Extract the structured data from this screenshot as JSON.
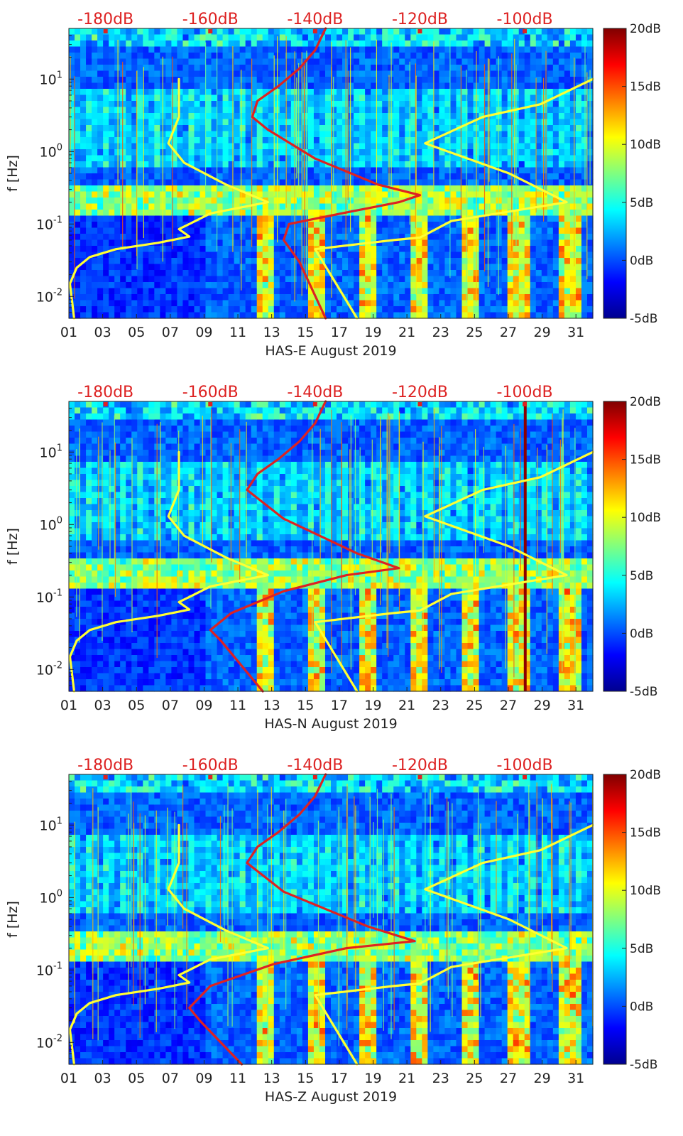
{
  "chart_data": [
    {
      "type": "heatmap",
      "title": "",
      "xlabel": "HAS-E August 2019",
      "ylabel": "f [Hz]",
      "x_ticks": [
        "01",
        "03",
        "05",
        "07",
        "09",
        "11",
        "13",
        "15",
        "17",
        "19",
        "21",
        "23",
        "25",
        "27",
        "29",
        "31"
      ],
      "x_range": [
        1,
        32
      ],
      "y_range": [
        0.005,
        50
      ],
      "y_scale": "log",
      "y_ticks": [
        0.01,
        0.1,
        1,
        10
      ],
      "y_tick_labels": [
        {
          "base": "10",
          "exp": "-2"
        },
        {
          "base": "10",
          "exp": "-1"
        },
        {
          "base": "10",
          "exp": "0"
        },
        {
          "base": "10",
          "exp": "1"
        }
      ],
      "top_axis_labels": [
        "-180dB",
        "-160dB",
        "-140dB",
        "-120dB",
        "-100dB"
      ],
      "top_axis_range": [
        -187,
        -87
      ],
      "colorbar_labels": [
        "20dB",
        "15dB",
        "10dB",
        "5dB",
        "0dB",
        "-5dB"
      ],
      "colorbar_range": [
        -5,
        20
      ],
      "series": [
        {
          "name": "yellow low-noise model",
          "color": "#ffff33",
          "points": [
            [
              -186,
              0.005
            ],
            [
              -186.8,
              0.015
            ],
            [
              -185.5,
              0.025
            ],
            [
              -183,
              0.035
            ],
            [
              -178,
              0.045
            ],
            [
              -170,
              0.055
            ],
            [
              -164,
              0.067
            ],
            [
              -166,
              0.085
            ],
            [
              -164,
              0.1
            ],
            [
              -160,
              0.14
            ],
            [
              -149,
              0.2
            ],
            [
              -157,
              0.35
            ],
            [
              -165,
              0.7
            ],
            [
              -168,
              1.3
            ],
            [
              -166,
              3
            ],
            [
              -166,
              10
            ]
          ]
        },
        {
          "name": "yellow high-noise model",
          "color": "#ffff33",
          "points": [
            [
              -132,
              0.005
            ],
            [
              -140,
              0.045
            ],
            [
              -125,
              0.06
            ],
            [
              -120,
              0.065
            ],
            [
              -114,
              0.11
            ],
            [
              -98,
              0.17
            ],
            [
              -92,
              0.2
            ],
            [
              -103,
              0.5
            ],
            [
              -119,
              1.3
            ],
            [
              -108,
              3
            ],
            [
              -97,
              4.5
            ],
            [
              -87,
              10
            ]
          ]
        },
        {
          "name": "red noise level",
          "color": "#dd2222",
          "points": [
            [
              -138,
              0.005
            ],
            [
              -143,
              0.03
            ],
            [
              -146,
              0.06
            ],
            [
              -145,
              0.1
            ],
            [
              -135,
              0.14
            ],
            [
              -124,
              0.2
            ],
            [
              -120,
              0.25
            ],
            [
              -128,
              0.35
            ],
            [
              -140,
              0.8
            ],
            [
              -149,
              2
            ],
            [
              -152,
              3
            ],
            [
              -151,
              5
            ],
            [
              -147,
              8
            ],
            [
              -143,
              14
            ],
            [
              -140,
              25
            ],
            [
              -138,
              50
            ]
          ]
        }
      ],
      "vertical_line_day": null
    },
    {
      "type": "heatmap",
      "title": "",
      "xlabel": "HAS-N August 2019",
      "ylabel": "f [Hz]",
      "x_ticks": [
        "01",
        "03",
        "05",
        "07",
        "09",
        "11",
        "13",
        "15",
        "17",
        "19",
        "21",
        "23",
        "25",
        "27",
        "29",
        "31"
      ],
      "x_range": [
        1,
        32
      ],
      "y_range": [
        0.005,
        50
      ],
      "y_scale": "log",
      "y_ticks": [
        0.01,
        0.1,
        1,
        10
      ],
      "y_tick_labels": [
        {
          "base": "10",
          "exp": "-2"
        },
        {
          "base": "10",
          "exp": "-1"
        },
        {
          "base": "10",
          "exp": "0"
        },
        {
          "base": "10",
          "exp": "1"
        }
      ],
      "top_axis_labels": [
        "-180dB",
        "-160dB",
        "-140dB",
        "-120dB",
        "-100dB"
      ],
      "top_axis_range": [
        -187,
        -87
      ],
      "colorbar_labels": [
        "20dB",
        "15dB",
        "10dB",
        "5dB",
        "0dB",
        "-5dB"
      ],
      "colorbar_range": [
        -5,
        20
      ],
      "series": [
        {
          "name": "yellow low-noise model",
          "color": "#ffff33",
          "points": [
            [
              -186,
              0.005
            ],
            [
              -186.8,
              0.015
            ],
            [
              -185.5,
              0.025
            ],
            [
              -183,
              0.035
            ],
            [
              -178,
              0.045
            ],
            [
              -170,
              0.055
            ],
            [
              -164,
              0.067
            ],
            [
              -166,
              0.085
            ],
            [
              -164,
              0.1
            ],
            [
              -160,
              0.14
            ],
            [
              -149,
              0.2
            ],
            [
              -157,
              0.35
            ],
            [
              -165,
              0.7
            ],
            [
              -168,
              1.3
            ],
            [
              -166,
              3
            ],
            [
              -166,
              10
            ]
          ]
        },
        {
          "name": "yellow high-noise model",
          "color": "#ffff33",
          "points": [
            [
              -132,
              0.005
            ],
            [
              -140,
              0.045
            ],
            [
              -125,
              0.06
            ],
            [
              -120,
              0.065
            ],
            [
              -114,
              0.11
            ],
            [
              -98,
              0.17
            ],
            [
              -92,
              0.2
            ],
            [
              -103,
              0.5
            ],
            [
              -119,
              1.3
            ],
            [
              -108,
              3
            ],
            [
              -97,
              4.5
            ],
            [
              -87,
              10
            ]
          ]
        },
        {
          "name": "red noise level",
          "color": "#dd2222",
          "points": [
            [
              -150,
              0.005
            ],
            [
              -158,
              0.025
            ],
            [
              -160,
              0.035
            ],
            [
              -156,
              0.06
            ],
            [
              -146,
              0.12
            ],
            [
              -134,
              0.2
            ],
            [
              -124,
              0.25
            ],
            [
              -132,
              0.4
            ],
            [
              -146,
              1.2
            ],
            [
              -153,
              3
            ],
            [
              -151,
              5
            ],
            [
              -147,
              8
            ],
            [
              -143,
              14
            ],
            [
              -140,
              25
            ],
            [
              -138,
              50
            ]
          ]
        }
      ],
      "vertical_line_day": 28
    },
    {
      "type": "heatmap",
      "title": "",
      "xlabel": "HAS-Z August 2019",
      "ylabel": "f [Hz]",
      "x_ticks": [
        "01",
        "03",
        "05",
        "07",
        "09",
        "11",
        "13",
        "15",
        "17",
        "19",
        "21",
        "23",
        "25",
        "27",
        "29",
        "31"
      ],
      "x_range": [
        1,
        32
      ],
      "y_range": [
        0.005,
        50
      ],
      "y_scale": "log",
      "y_ticks": [
        0.01,
        0.1,
        1,
        10
      ],
      "y_tick_labels": [
        {
          "base": "10",
          "exp": "-2"
        },
        {
          "base": "10",
          "exp": "-1"
        },
        {
          "base": "10",
          "exp": "0"
        },
        {
          "base": "10",
          "exp": "1"
        }
      ],
      "top_axis_labels": [
        "-180dB",
        "-160dB",
        "-140dB",
        "-120dB",
        "-100dB"
      ],
      "top_axis_range": [
        -187,
        -87
      ],
      "colorbar_labels": [
        "20dB",
        "15dB",
        "10dB",
        "5dB",
        "0dB",
        "-5dB"
      ],
      "colorbar_range": [
        -5,
        20
      ],
      "series": [
        {
          "name": "yellow low-noise model",
          "color": "#ffff33",
          "points": [
            [
              -186,
              0.005
            ],
            [
              -186.8,
              0.015
            ],
            [
              -185.5,
              0.025
            ],
            [
              -183,
              0.035
            ],
            [
              -178,
              0.045
            ],
            [
              -170,
              0.055
            ],
            [
              -164,
              0.067
            ],
            [
              -166,
              0.085
            ],
            [
              -164,
              0.1
            ],
            [
              -160,
              0.14
            ],
            [
              -149,
              0.2
            ],
            [
              -157,
              0.35
            ],
            [
              -165,
              0.7
            ],
            [
              -168,
              1.3
            ],
            [
              -166,
              3
            ],
            [
              -166,
              10
            ]
          ]
        },
        {
          "name": "yellow high-noise model",
          "color": "#ffff33",
          "points": [
            [
              -132,
              0.005
            ],
            [
              -140,
              0.045
            ],
            [
              -125,
              0.06
            ],
            [
              -120,
              0.065
            ],
            [
              -114,
              0.11
            ],
            [
              -98,
              0.17
            ],
            [
              -92,
              0.2
            ],
            [
              -103,
              0.5
            ],
            [
              -119,
              1.3
            ],
            [
              -108,
              3
            ],
            [
              -97,
              4.5
            ],
            [
              -87,
              10
            ]
          ]
        },
        {
          "name": "red noise level",
          "color": "#dd2222",
          "points": [
            [
              -154,
              0.005
            ],
            [
              -162,
              0.02
            ],
            [
              -164,
              0.03
            ],
            [
              -160,
              0.06
            ],
            [
              -148,
              0.12
            ],
            [
              -134,
              0.2
            ],
            [
              -121,
              0.25
            ],
            [
              -130,
              0.4
            ],
            [
              -146,
              1.2
            ],
            [
              -153,
              3
            ],
            [
              -151,
              5
            ],
            [
              -147,
              8
            ],
            [
              -143,
              14
            ],
            [
              -140,
              25
            ],
            [
              -138,
              50
            ]
          ]
        }
      ],
      "vertical_line_day": null
    }
  ]
}
